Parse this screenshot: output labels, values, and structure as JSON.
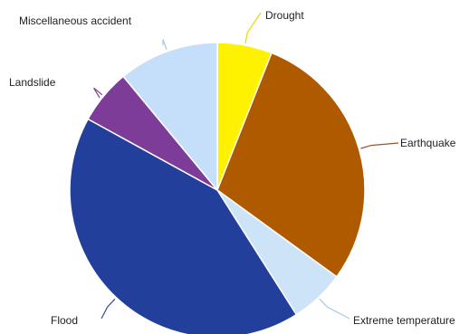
{
  "chart_data": {
    "type": "pie",
    "title": "",
    "slices": [
      {
        "label": "Drought",
        "value": 6,
        "color": "#fff200",
        "leader_color": "#e8d800"
      },
      {
        "label": "Earthquake",
        "value": 29,
        "color": "#b05a00",
        "leader_color": "#a0522d"
      },
      {
        "label": "Extreme temperature",
        "value": 6,
        "color": "#cde3f7",
        "leader_color": "#a8c8ea"
      },
      {
        "label": "Flood",
        "value": 42,
        "color": "#233f9c",
        "leader_color": "#3b4a8f"
      },
      {
        "label": "Landslide",
        "value": 6,
        "color": "#7d3c98",
        "leader_color": "#7d3c98"
      },
      {
        "label": "Miscellaneous accident",
        "value": 11,
        "color": "#c5dffa",
        "leader_color": "#a8c8ea"
      }
    ],
    "start": "top",
    "direction": "clockwise",
    "legend": "none"
  }
}
